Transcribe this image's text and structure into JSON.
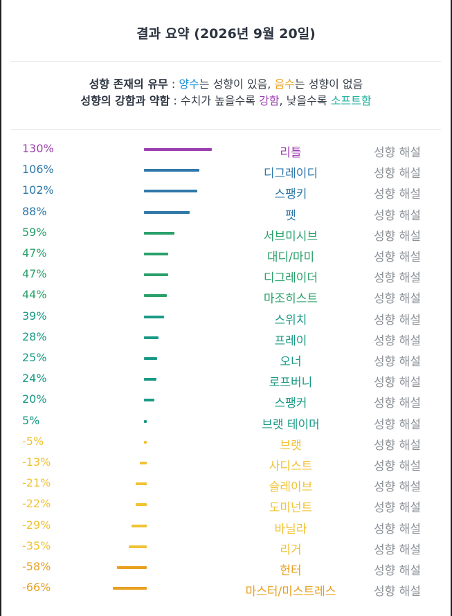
{
  "header": {
    "title": "결과 요약 (2026년 9월 20일)"
  },
  "legend": {
    "line1": {
      "key": "성향 존재의 유무",
      "sep": " : ",
      "pos_word": "양수",
      "pos_rest": "는 성향이 있음, ",
      "neg_word": "음수",
      "neg_rest": "는 성향이 없음"
    },
    "line2": {
      "key": "성향의 강함과 약함",
      "sep": " : 수치가 높을수록 ",
      "strong_word": "강함",
      "mid": ", 낮을수록 ",
      "soft_word": "소프트함"
    }
  },
  "colors": {
    "purple": "#9b3fb0",
    "blue": "#2f78a8",
    "green": "#2aa06a",
    "teal": "#1a9a86",
    "yellow": "#f1c232",
    "orange": "#e8a020",
    "gray": "#8a8f95"
  },
  "chart_data": {
    "type": "bar",
    "orientation": "horizontal",
    "categories": [
      "리틀",
      "디그레이디",
      "스팽키",
      "펫",
      "서브미시브",
      "대디/마미",
      "디그레이더",
      "마조히스트",
      "스위치",
      "프레이",
      "오너",
      "로프버니",
      "스팽커",
      "브랫 테이머",
      "브랫",
      "사디스트",
      "슬레이브",
      "도미넌트",
      "바닐라",
      "리거",
      "헌터",
      "마스터/미스트레스"
    ],
    "values": [
      130,
      106,
      102,
      88,
      59,
      47,
      47,
      44,
      39,
      28,
      25,
      24,
      20,
      5,
      -5,
      -13,
      -21,
      -22,
      -29,
      -35,
      -58,
      -66
    ],
    "labels": [
      "130%",
      "106%",
      "102%",
      "88%",
      "59%",
      "47%",
      "47%",
      "44%",
      "39%",
      "28%",
      "25%",
      "24%",
      "20%",
      "5%",
      "-5%",
      "-13%",
      "-21%",
      "-22%",
      "-29%",
      "-35%",
      "-58%",
      "-66%"
    ],
    "colors": [
      "#9b3fb0",
      "#2f78a8",
      "#2f78a8",
      "#2f78a8",
      "#2aa06a",
      "#2aa06a",
      "#2aa06a",
      "#2aa06a",
      "#1a9a86",
      "#1a9a86",
      "#1a9a86",
      "#1a9a86",
      "#1a9a86",
      "#1a9a86",
      "#f1c232",
      "#f1c232",
      "#f1c232",
      "#f1c232",
      "#f1c232",
      "#f1c232",
      "#e8a020",
      "#e8a020"
    ],
    "row_action": "성향 해설",
    "title": "",
    "xlabel": "",
    "ylabel": ""
  }
}
